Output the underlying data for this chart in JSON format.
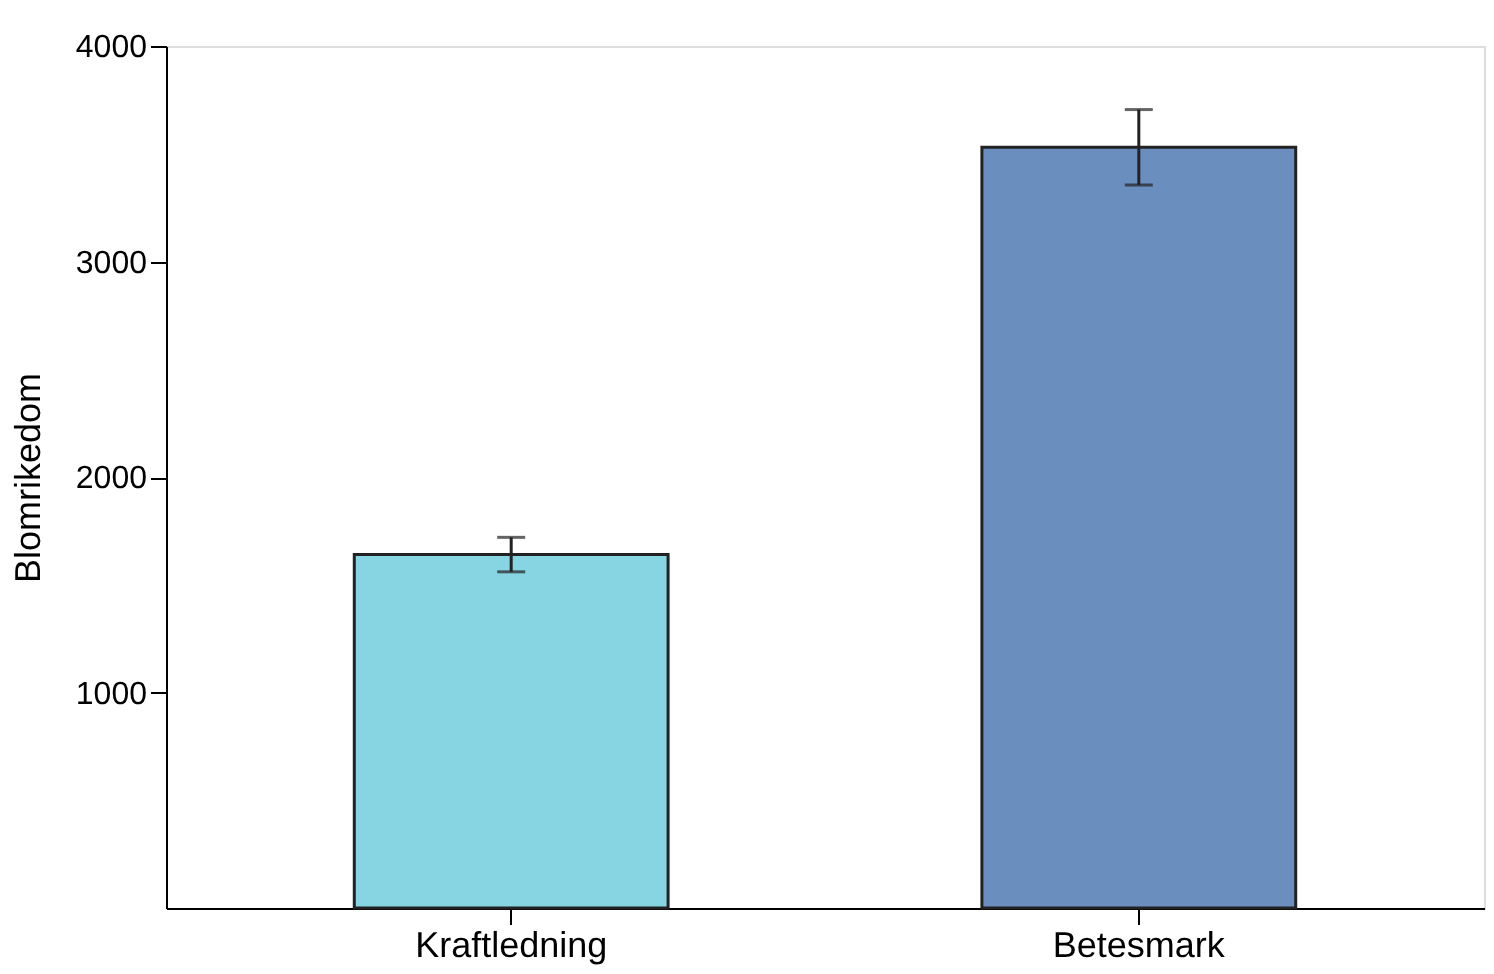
{
  "chart_data": {
    "type": "bar",
    "ylabel": "Blomrikedom",
    "categories": [
      "Kraftledning",
      "Betesmark"
    ],
    "values": [
      1640,
      3530
    ],
    "colors": [
      "#87d4e3",
      "#6a8fbe"
    ],
    "errors": [
      80,
      175
    ],
    "ylim": [
      0,
      4000
    ],
    "yticks": [
      1000,
      2000,
      3000,
      4000
    ],
    "grid": false
  }
}
